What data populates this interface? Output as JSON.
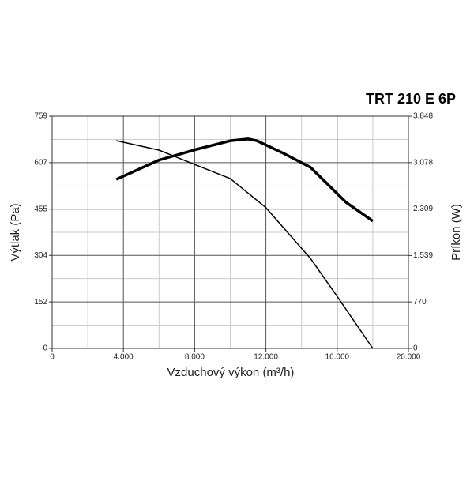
{
  "chart_data": {
    "type": "line",
    "title": "TRT 210 E 6P",
    "xlabel": "Vzduchový výkon (m³/h)",
    "ylabel": "Výtlak (Pa)",
    "y2label": "Príkon (W)",
    "xlim": [
      0,
      20000
    ],
    "xticks": [
      0,
      {
        "value": 4000,
        "label": "4.000"
      },
      {
        "value": 8000,
        "label": "8.000"
      },
      {
        "value": 12000,
        "label": "12.000"
      },
      {
        "value": 16000,
        "label": "16.000"
      },
      {
        "value": 20000,
        "label": "20.000"
      }
    ],
    "ylim": [
      0,
      759
    ],
    "yticks": [
      0,
      152,
      304,
      455,
      607,
      759
    ],
    "y2lim": [
      0,
      3848
    ],
    "y2ticks": [
      0,
      770,
      {
        "value": 1539,
        "label": "1.539"
      },
      {
        "value": 2309,
        "label": "2.309"
      },
      {
        "value": 3078,
        "label": "3.078"
      },
      {
        "value": 3848,
        "label": "3.848"
      }
    ],
    "grid": true,
    "series": [
      {
        "color": "#000000",
        "x": [
          3600,
          6000,
          8000,
          10000,
          12000,
          14500,
          16000,
          18000
        ],
        "values": [
          679,
          648,
          601,
          555,
          460,
          294,
          170,
          0
        ]
      },
      {
        "color": "#000000",
        "axis": "y2",
        "x": [
          3600,
          6000,
          8000,
          10000,
          11000,
          11500,
          13000,
          14500,
          16500,
          18000
        ],
        "values": [
          2800,
          3120,
          3290,
          3440,
          3470,
          3440,
          3230,
          3000,
          2420,
          2110
        ]
      }
    ]
  }
}
